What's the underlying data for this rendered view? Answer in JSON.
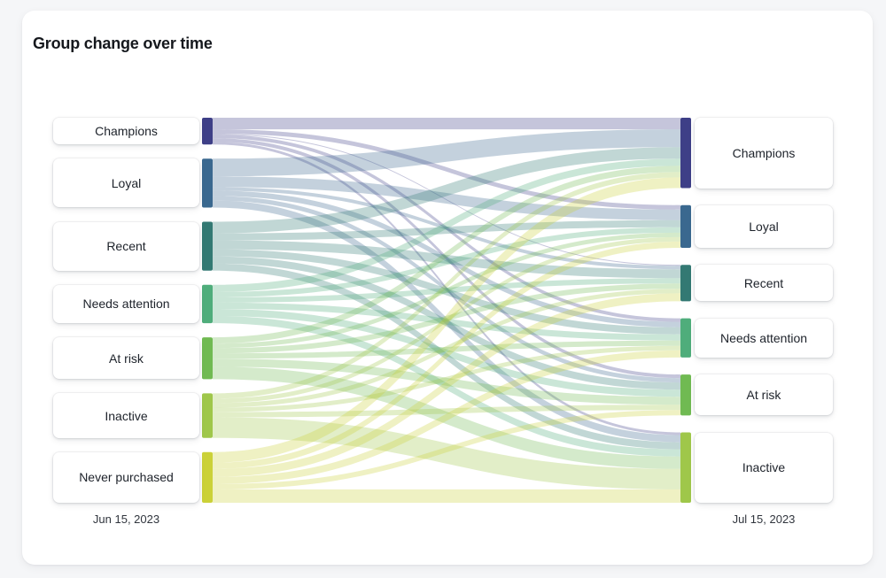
{
  "page": {
    "background_color": "#F5F6F8",
    "card_background_color": "#FFFFFF"
  },
  "card": {
    "title": "Group change over time"
  },
  "chart_data": {
    "type": "sankey",
    "title": "Group change over time",
    "left_axis_label": "Jun 15, 2023",
    "right_axis_label": "Jul 15, 2023",
    "link_opacity": 0.3,
    "groups": [
      {
        "id": "champions",
        "label": "Champions",
        "color": "#3E3F87"
      },
      {
        "id": "loyal",
        "label": "Loyal",
        "color": "#3A688F"
      },
      {
        "id": "recent",
        "label": "Recent",
        "color": "#337973"
      },
      {
        "id": "needs-attention",
        "label": "Needs attention",
        "color": "#4FAD7B"
      },
      {
        "id": "at-risk",
        "label": "At risk",
        "color": "#70BA52"
      },
      {
        "id": "inactive",
        "label": "Inactive",
        "color": "#9FC74A"
      },
      {
        "id": "never-purchased",
        "label": "Never purchased",
        "color": "#CBD138"
      }
    ],
    "left_nodes": [
      "Champions",
      "Loyal",
      "Recent",
      "Needs attention",
      "At risk",
      "Inactive",
      "Never purchased"
    ],
    "right_nodes": [
      "Champions",
      "Loyal",
      "Recent",
      "Needs attention",
      "At risk",
      "Inactive"
    ],
    "links": [
      {
        "from": "Champions",
        "to": "Champions",
        "value": 13
      },
      {
        "from": "Champions",
        "to": "Loyal",
        "value": 5
      },
      {
        "from": "Champions",
        "to": "Recent",
        "value": 1
      },
      {
        "from": "Champions",
        "to": "Needs attention",
        "value": 4
      },
      {
        "from": "Champions",
        "to": "At risk",
        "value": 4
      },
      {
        "from": "Champions",
        "to": "Inactive",
        "value": 3
      },
      {
        "from": "Loyal",
        "to": "Champions",
        "value": 20
      },
      {
        "from": "Loyal",
        "to": "Loyal",
        "value": 12
      },
      {
        "from": "Loyal",
        "to": "Recent",
        "value": 4
      },
      {
        "from": "Loyal",
        "to": "Needs attention",
        "value": 6
      },
      {
        "from": "Loyal",
        "to": "At risk",
        "value": 5
      },
      {
        "from": "Loyal",
        "to": "Inactive",
        "value": 8
      },
      {
        "from": "Recent",
        "to": "Champions",
        "value": 13
      },
      {
        "from": "Recent",
        "to": "Loyal",
        "value": 8
      },
      {
        "from": "Recent",
        "to": "Recent",
        "value": 10
      },
      {
        "from": "Recent",
        "to": "Needs attention",
        "value": 8
      },
      {
        "from": "Recent",
        "to": "At risk",
        "value": 8
      },
      {
        "from": "Recent",
        "to": "Inactive",
        "value": 8
      },
      {
        "from": "Needs attention",
        "to": "Champions",
        "value": 8
      },
      {
        "from": "Needs attention",
        "to": "Loyal",
        "value": 6
      },
      {
        "from": "Needs attention",
        "to": "Recent",
        "value": 6
      },
      {
        "from": "Needs attention",
        "to": "Needs attention",
        "value": 7
      },
      {
        "from": "Needs attention",
        "to": "At risk",
        "value": 8
      },
      {
        "from": "Needs attention",
        "to": "Inactive",
        "value": 8
      },
      {
        "from": "At risk",
        "to": "Champions",
        "value": 7
      },
      {
        "from": "At risk",
        "to": "Loyal",
        "value": 5
      },
      {
        "from": "At risk",
        "to": "Recent",
        "value": 6
      },
      {
        "from": "At risk",
        "to": "Needs attention",
        "value": 6
      },
      {
        "from": "At risk",
        "to": "At risk",
        "value": 9
      },
      {
        "from": "At risk",
        "to": "Inactive",
        "value": 14
      },
      {
        "from": "Inactive",
        "to": "Champions",
        "value": 6
      },
      {
        "from": "Inactive",
        "to": "Loyal",
        "value": 5
      },
      {
        "from": "Inactive",
        "to": "Recent",
        "value": 5
      },
      {
        "from": "Inactive",
        "to": "Needs attention",
        "value": 5
      },
      {
        "from": "Inactive",
        "to": "At risk",
        "value": 6
      },
      {
        "from": "Inactive",
        "to": "Inactive",
        "value": 23
      },
      {
        "from": "Never purchased",
        "to": "Champions",
        "value": 12
      },
      {
        "from": "Never purchased",
        "to": "Loyal",
        "value": 7
      },
      {
        "from": "Never purchased",
        "to": "Recent",
        "value": 9
      },
      {
        "from": "Never purchased",
        "to": "Needs attention",
        "value": 8
      },
      {
        "from": "Never purchased",
        "to": "At risk",
        "value": 6
      },
      {
        "from": "Never purchased",
        "to": "Inactive",
        "value": 15
      }
    ]
  }
}
